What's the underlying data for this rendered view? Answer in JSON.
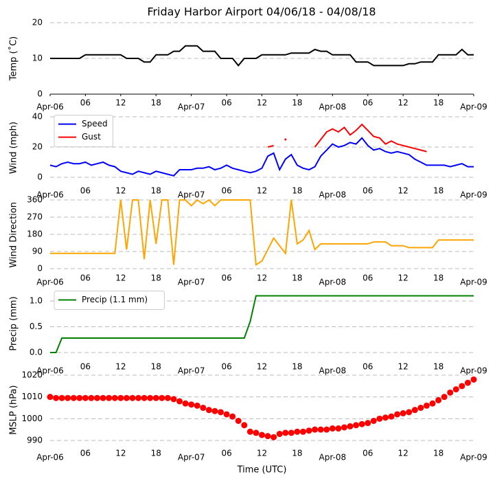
{
  "chart_data": [
    {
      "type": "line",
      "title": "Friday Harbor Airport 04/06/18 - 04/08/18",
      "ylabel": "Temp (˚C)",
      "x": [
        0,
        1,
        2,
        3,
        4,
        5,
        6,
        7,
        8,
        9,
        10,
        11,
        12,
        13,
        14,
        15,
        16,
        17,
        18,
        19,
        20,
        21,
        22,
        23,
        24,
        25,
        26,
        27,
        28,
        29,
        30,
        31,
        32,
        33,
        34,
        35,
        36,
        37,
        38,
        39,
        40,
        41,
        42,
        43,
        44,
        45,
        46,
        47,
        48,
        49,
        50,
        51,
        52,
        53,
        54,
        55,
        56,
        57,
        58,
        59,
        60,
        61,
        62,
        63,
        64,
        65,
        66,
        67,
        68,
        69,
        70,
        71,
        72
      ],
      "series": [
        {
          "name": "Temp",
          "color": "#000000",
          "values": [
            10,
            10,
            10,
            10,
            10,
            10,
            11,
            11,
            11,
            11,
            11,
            11,
            11,
            10,
            10,
            10,
            9,
            9,
            11,
            11,
            11,
            12,
            12,
            13.5,
            13.5,
            13.5,
            12,
            12,
            12,
            10,
            10,
            10,
            8,
            10,
            10,
            10,
            11,
            11,
            11,
            11,
            11,
            11.5,
            11.5,
            11.5,
            11.5,
            12.5,
            12,
            12,
            11,
            11,
            11,
            11,
            9,
            9,
            9,
            8,
            8,
            8,
            8,
            8,
            8,
            8.5,
            8.5,
            9,
            9,
            9,
            11,
            11,
            11,
            11,
            12.5,
            11,
            11
          ]
        }
      ],
      "xlim": [
        0,
        72
      ],
      "xticks": [
        {
          "value": 0,
          "label": "Apr-06"
        },
        {
          "value": 6,
          "label": "06"
        },
        {
          "value": 12,
          "label": "12"
        },
        {
          "value": 18,
          "label": "18"
        },
        {
          "value": 24,
          "label": "Apr-07"
        },
        {
          "value": 30,
          "label": "06"
        },
        {
          "value": 36,
          "label": "12"
        },
        {
          "value": 42,
          "label": "18"
        },
        {
          "value": 48,
          "label": "Apr-08"
        },
        {
          "value": 54,
          "label": "06"
        },
        {
          "value": 60,
          "label": "12"
        },
        {
          "value": 66,
          "label": "18"
        },
        {
          "value": 72,
          "label": "Apr-09"
        }
      ],
      "ylim": [
        0,
        20
      ],
      "yticks": [
        0,
        10,
        20
      ],
      "grid": true
    },
    {
      "type": "line",
      "ylabel": "Wind (mph)",
      "legend": "upper left",
      "x": [
        0,
        1,
        2,
        3,
        4,
        5,
        6,
        7,
        8,
        9,
        10,
        11,
        12,
        13,
        14,
        15,
        16,
        17,
        18,
        19,
        20,
        21,
        22,
        23,
        24,
        25,
        26,
        27,
        28,
        29,
        30,
        31,
        32,
        33,
        34,
        35,
        36,
        37,
        38,
        39,
        40,
        41,
        42,
        43,
        44,
        45,
        46,
        47,
        48,
        49,
        50,
        51,
        52,
        53,
        54,
        55,
        56,
        57,
        58,
        59,
        60,
        61,
        62,
        63,
        64,
        65,
        66,
        67,
        68,
        69,
        70,
        71,
        72
      ],
      "series": [
        {
          "name": "Speed",
          "color": "#0000ff",
          "values": [
            8,
            7,
            9,
            10,
            9,
            9,
            10,
            8,
            9,
            10,
            8,
            7,
            4,
            3,
            2,
            4,
            3,
            2,
            4,
            3,
            2,
            1,
            5,
            5,
            5,
            6,
            6,
            7,
            5,
            6,
            8,
            6,
            5,
            4,
            3,
            4,
            6,
            14,
            16,
            5,
            12,
            15,
            8,
            6,
            5,
            7,
            14,
            18,
            22,
            20,
            21,
            23,
            22,
            26,
            21,
            18,
            19,
            17,
            16,
            17,
            16,
            15,
            12,
            10,
            8,
            8,
            8,
            8,
            7,
            8,
            9,
            7,
            7
          ]
        },
        {
          "name": "Gust",
          "color": "#ff0000",
          "values": [
            null,
            null,
            null,
            null,
            null,
            null,
            null,
            null,
            null,
            null,
            null,
            null,
            null,
            null,
            null,
            null,
            null,
            null,
            null,
            null,
            null,
            null,
            null,
            null,
            null,
            null,
            null,
            null,
            null,
            null,
            null,
            null,
            null,
            null,
            null,
            null,
            null,
            20,
            21,
            null,
            25,
            null,
            null,
            null,
            null,
            20,
            25,
            30,
            32,
            30,
            33,
            28,
            31,
            35,
            31,
            27,
            26,
            22,
            24,
            22,
            21,
            20,
            19,
            18,
            17,
            null,
            null,
            null,
            null,
            null,
            null,
            null,
            null
          ]
        }
      ],
      "xlim": [
        0,
        72
      ],
      "xticks": [
        {
          "value": 0,
          "label": "Apr-06"
        },
        {
          "value": 6,
          "label": "06"
        },
        {
          "value": 12,
          "label": "12"
        },
        {
          "value": 18,
          "label": "18"
        },
        {
          "value": 24,
          "label": "Apr-07"
        },
        {
          "value": 30,
          "label": "06"
        },
        {
          "value": 36,
          "label": "12"
        },
        {
          "value": 42,
          "label": "18"
        },
        {
          "value": 48,
          "label": "Apr-08"
        },
        {
          "value": 54,
          "label": "06"
        },
        {
          "value": 60,
          "label": "12"
        },
        {
          "value": 66,
          "label": "18"
        },
        {
          "value": 72,
          "label": "Apr-09"
        }
      ],
      "ylim": [
        -3,
        42
      ],
      "yticks": [
        0,
        20,
        40
      ],
      "grid": true
    },
    {
      "type": "line",
      "ylabel": "Wind Direction",
      "x": [
        0,
        1,
        2,
        3,
        4,
        5,
        6,
        7,
        8,
        9,
        10,
        11,
        12,
        13,
        14,
        15,
        16,
        17,
        18,
        19,
        20,
        21,
        22,
        23,
        24,
        25,
        26,
        27,
        28,
        29,
        30,
        31,
        32,
        33,
        34,
        35,
        36,
        37,
        38,
        39,
        40,
        41,
        42,
        43,
        44,
        45,
        46,
        47,
        48,
        49,
        50,
        51,
        52,
        53,
        54,
        55,
        56,
        57,
        58,
        59,
        60,
        61,
        62,
        63,
        64,
        65,
        66,
        67,
        68,
        69,
        70,
        71,
        72
      ],
      "series": [
        {
          "name": "Direction",
          "color": "#ffa500",
          "values": [
            80,
            80,
            80,
            80,
            80,
            80,
            80,
            80,
            80,
            80,
            80,
            80,
            360,
            100,
            360,
            360,
            50,
            360,
            130,
            360,
            360,
            20,
            360,
            360,
            330,
            360,
            340,
            360,
            330,
            360,
            360,
            360,
            360,
            360,
            360,
            20,
            40,
            100,
            160,
            120,
            80,
            360,
            130,
            150,
            200,
            100,
            130,
            130,
            130,
            130,
            130,
            130,
            130,
            130,
            130,
            140,
            140,
            140,
            120,
            120,
            120,
            110,
            110,
            110,
            110,
            110,
            150,
            150,
            150,
            150,
            150,
            150,
            150
          ]
        }
      ],
      "xlim": [
        0,
        72
      ],
      "xticks": [
        {
          "value": 0,
          "label": "Apr-06"
        },
        {
          "value": 6,
          "label": "06"
        },
        {
          "value": 12,
          "label": "12"
        },
        {
          "value": 18,
          "label": "18"
        },
        {
          "value": 24,
          "label": "Apr-07"
        },
        {
          "value": 30,
          "label": "06"
        },
        {
          "value": 36,
          "label": "12"
        },
        {
          "value": 42,
          "label": "18"
        },
        {
          "value": 48,
          "label": "Apr-08"
        },
        {
          "value": 54,
          "label": "06"
        },
        {
          "value": 60,
          "label": "12"
        },
        {
          "value": 66,
          "label": "18"
        },
        {
          "value": 72,
          "label": "Apr-09"
        }
      ],
      "ylim": [
        -8,
        362
      ],
      "yticks": [
        0,
        90,
        180,
        270,
        360
      ],
      "grid": true
    },
    {
      "type": "line",
      "ylabel": "Precip (mm)",
      "legend": "upper left",
      "x": [
        0,
        1,
        2,
        3,
        4,
        5,
        6,
        7,
        8,
        9,
        10,
        11,
        12,
        13,
        14,
        15,
        16,
        17,
        18,
        19,
        20,
        21,
        22,
        23,
        24,
        25,
        26,
        27,
        28,
        29,
        30,
        31,
        32,
        33,
        34,
        35,
        36,
        37,
        38,
        39,
        40,
        41,
        42,
        43,
        44,
        45,
        46,
        47,
        48,
        49,
        50,
        51,
        52,
        53,
        54,
        55,
        56,
        57,
        58,
        59,
        60,
        61,
        62,
        63,
        64,
        65,
        66,
        67,
        68,
        69,
        70,
        71,
        72
      ],
      "series": [
        {
          "name": "Precip (1.1 mm)",
          "color": "#008000",
          "values": [
            0,
            0,
            0.28,
            0.28,
            0.28,
            0.28,
            0.28,
            0.28,
            0.28,
            0.28,
            0.28,
            0.28,
            0.28,
            0.28,
            0.28,
            0.28,
            0.28,
            0.28,
            0.28,
            0.28,
            0.28,
            0.28,
            0.28,
            0.28,
            0.28,
            0.28,
            0.28,
            0.28,
            0.28,
            0.28,
            0.28,
            0.28,
            0.28,
            0.28,
            0.6,
            1.1,
            1.1,
            1.1,
            1.1,
            1.1,
            1.1,
            1.1,
            1.1,
            1.1,
            1.1,
            1.1,
            1.1,
            1.1,
            1.1,
            1.1,
            1.1,
            1.1,
            1.1,
            1.1,
            1.1,
            1.1,
            1.1,
            1.1,
            1.1,
            1.1,
            1.1,
            1.1,
            1.1,
            1.1,
            1.1,
            1.1,
            1.1,
            1.1,
            1.1,
            1.1,
            1.1,
            1.1,
            1.1
          ]
        }
      ],
      "xlim": [
        0,
        72
      ],
      "xticks": [
        {
          "value": 0,
          "label": "Apr-06"
        },
        {
          "value": 6,
          "label": "06"
        },
        {
          "value": 12,
          "label": "12"
        },
        {
          "value": 18,
          "label": "18"
        },
        {
          "value": 24,
          "label": "Apr-07"
        },
        {
          "value": 30,
          "label": "06"
        },
        {
          "value": 36,
          "label": "12"
        },
        {
          "value": 42,
          "label": "18"
        },
        {
          "value": 48,
          "label": "Apr-08"
        },
        {
          "value": 54,
          "label": "06"
        },
        {
          "value": 60,
          "label": "12"
        },
        {
          "value": 66,
          "label": "18"
        },
        {
          "value": 72,
          "label": "Apr-09"
        }
      ],
      "ylim": [
        -0.1,
        1.22
      ],
      "yticks": [
        {
          "value": 0,
          "label": "0.0"
        },
        0.5,
        {
          "value": 1,
          "label": "1.0"
        }
      ],
      "grid": true
    },
    {
      "type": "scatter",
      "ylabel": "MSLP (hPa)",
      "xlabel": "Time (UTC)",
      "x": [
        0,
        1,
        2,
        3,
        4,
        5,
        6,
        7,
        8,
        9,
        10,
        11,
        12,
        13,
        14,
        15,
        16,
        17,
        18,
        19,
        20,
        21,
        22,
        23,
        24,
        25,
        26,
        27,
        28,
        29,
        30,
        31,
        32,
        33,
        34,
        35,
        36,
        37,
        38,
        39,
        40,
        41,
        42,
        43,
        44,
        45,
        46,
        47,
        48,
        49,
        50,
        51,
        52,
        53,
        54,
        55,
        56,
        57,
        58,
        59,
        60,
        61,
        62,
        63,
        64,
        65,
        66,
        67,
        68,
        69,
        70,
        71,
        72
      ],
      "series": [
        {
          "name": "MSLP",
          "color": "#ff0000",
          "values": [
            1010,
            1009.5,
            1009.5,
            1009.5,
            1009.5,
            1009.5,
            1009.5,
            1009.5,
            1009.5,
            1009.5,
            1009.5,
            1009.5,
            1009.5,
            1009.5,
            1009.5,
            1009.5,
            1009.5,
            1009.5,
            1009.5,
            1009.5,
            1009.5,
            1009,
            1008,
            1007,
            1006.5,
            1006,
            1005,
            1004,
            1003.5,
            1003,
            1002,
            1001,
            999,
            997,
            994,
            993.5,
            992.5,
            992,
            991.5,
            993,
            993.5,
            993.5,
            994,
            994,
            994.5,
            995,
            995,
            995,
            995.5,
            995.5,
            996,
            996.5,
            997,
            997.5,
            998,
            999,
            1000,
            1000.5,
            1001,
            1002,
            1002.5,
            1003,
            1004,
            1005,
            1006,
            1007,
            1008.5,
            1010,
            1012,
            1013.5,
            1015,
            1016.5,
            1018
          ]
        }
      ],
      "xlim": [
        0,
        72
      ],
      "xticks": [
        {
          "value": 0,
          "label": "Apr-06"
        },
        {
          "value": 6,
          "label": "06"
        },
        {
          "value": 12,
          "label": "12"
        },
        {
          "value": 18,
          "label": "18"
        },
        {
          "value": 24,
          "label": "Apr-07"
        },
        {
          "value": 30,
          "label": "06"
        },
        {
          "value": 36,
          "label": "12"
        },
        {
          "value": 42,
          "label": "18"
        },
        {
          "value": 48,
          "label": "Apr-08"
        },
        {
          "value": 54,
          "label": "06"
        },
        {
          "value": 60,
          "label": "12"
        },
        {
          "value": 66,
          "label": "18"
        },
        {
          "value": 72,
          "label": "Apr-09"
        }
      ],
      "ylim": [
        988,
        1020
      ],
      "yticks": [
        990,
        1000,
        1010,
        1020
      ],
      "grid": true
    }
  ]
}
